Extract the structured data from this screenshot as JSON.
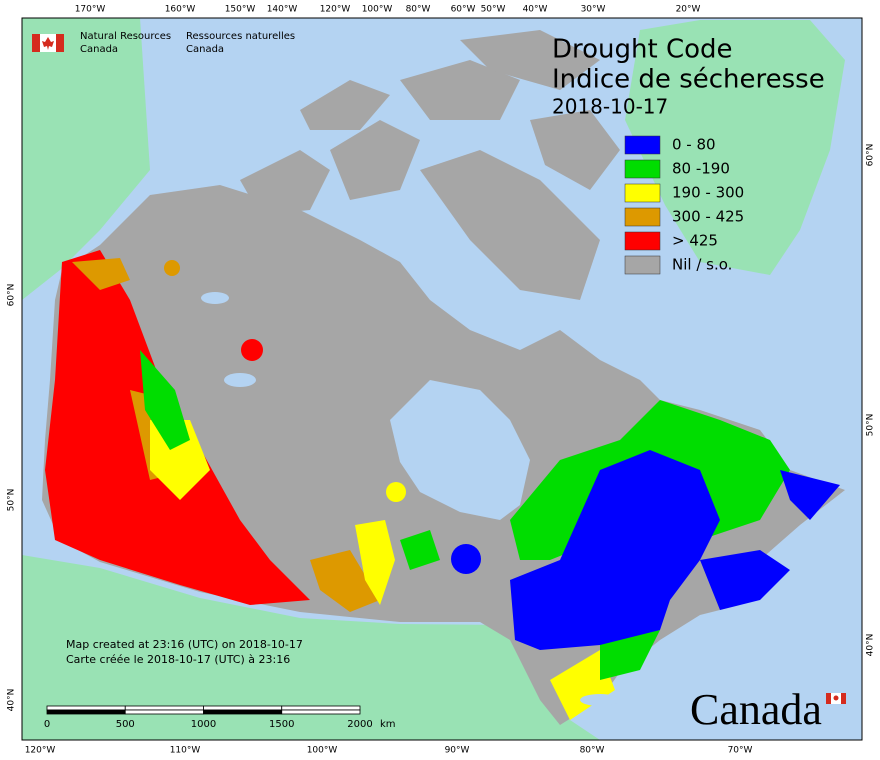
{
  "header": {
    "agency_en": [
      "Natural Resources",
      "Canada"
    ],
    "agency_fr": [
      "Ressources naturelles",
      "Canada"
    ]
  },
  "title": "Drought Code",
  "title_fr": "Indice de sécheresse",
  "date": "2018-10-17",
  "legend": [
    {
      "label": "0 - 80",
      "color": "#0000ff"
    },
    {
      "label": "80 -190",
      "color": "#00dd00"
    },
    {
      "label": "190 - 300",
      "color": "#ffff00"
    },
    {
      "label": "300 - 425",
      "color": "#dd9900"
    },
    {
      "label": "> 425",
      "color": "#ff0000"
    },
    {
      "label": "Nil / s.o.",
      "color": "#a6a6a6"
    }
  ],
  "top_longitudes": [
    "170°W",
    "160°W",
    "150°W",
    "140°W",
    "120°W",
    "100°W",
    "80°W",
    "60°W",
    "50°W",
    "40°W",
    "30°W",
    "20°W"
  ],
  "bottom_longitudes": [
    "120°W",
    "110°W",
    "100°W",
    "90°W",
    "80°W",
    "70°W"
  ],
  "left_latitudes": [
    "60°N",
    "50°N",
    "40°N"
  ],
  "right_latitudes": [
    "60°N",
    "50°N",
    "40°N"
  ],
  "scale": {
    "labels": [
      "0",
      "500",
      "1000",
      "1500",
      "2000"
    ],
    "unit": "km"
  },
  "credits": [
    "Map created at 23:16 (UTC) on 2018-10-17",
    "Carte créée le 2018-10-17 (UTC) à 23:16"
  ],
  "wordmark": "Canada"
}
